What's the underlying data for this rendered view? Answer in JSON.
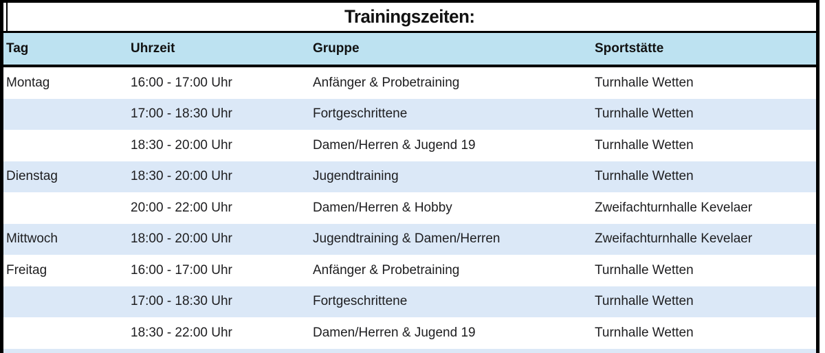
{
  "title": "Trainingszeiten:",
  "table": {
    "columns": [
      "Tag",
      "Uhrzeit",
      "Gruppe",
      "Sportstätte"
    ],
    "rows": [
      [
        "Montag",
        "16:00 - 17:00 Uhr",
        "Anfänger & Probetraining",
        "Turnhalle Wetten"
      ],
      [
        "",
        "17:00 - 18:30 Uhr",
        "Fortgeschrittene",
        "Turnhalle Wetten"
      ],
      [
        "",
        "18:30 - 20:00 Uhr",
        "Damen/Herren & Jugend 19",
        "Turnhalle Wetten"
      ],
      [
        "Dienstag",
        "18:30 - 20:00 Uhr",
        "Jugendtraining",
        "Turnhalle Wetten"
      ],
      [
        "",
        "20:00 - 22:00 Uhr",
        "Damen/Herren & Hobby",
        "Zweifachturnhalle Kevelaer"
      ],
      [
        "Mittwoch",
        "18:00 - 20:00 Uhr",
        "Jugendtraining & Damen/Herren",
        "Zweifachturnhalle Kevelaer"
      ],
      [
        "Freitag",
        "16:00 - 17:00 Uhr",
        "Anfänger & Probetraining",
        "Turnhalle Wetten"
      ],
      [
        "",
        "17:00 - 18:30 Uhr",
        "Fortgeschrittene",
        "Turnhalle Wetten"
      ],
      [
        "",
        "18:30 - 22:00 Uhr",
        "Damen/Herren & Jugend 19",
        "Turnhalle Wetten"
      ]
    ]
  },
  "colors": {
    "header_bg": "#BDE2F1",
    "row_alt_bg": "#DBE8F7",
    "border": "#000000",
    "text": "#1D1D1F"
  }
}
